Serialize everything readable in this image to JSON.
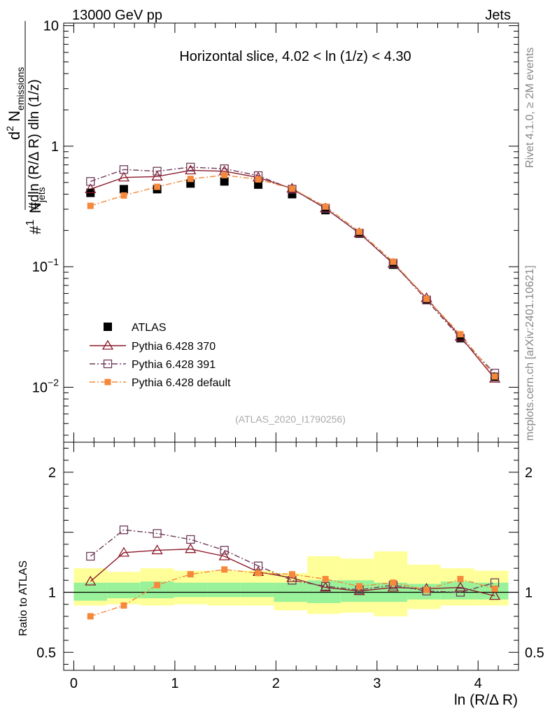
{
  "header": {
    "left": "13000 GeV pp",
    "right": "Jets",
    "rivet": "Rivet 4.1.0, ≥ 2M events",
    "mcplots": "mcplots.cern.ch [arXiv:2401.10621]",
    "analysis": "(ATLAS_2020_I1790256)"
  },
  "chart_data": [
    {
      "type": "line",
      "title": "Horizontal slice, 4.02 < ln (1/z) < 4.30",
      "xlabel": "ln (R/Δ R)",
      "ylabel": "1/N_jets dN_emissions/dln(R/ΔR) dln(1/z)",
      "ylabel_parts": {
        "frac": "1",
        "njets": "N",
        "njets_sub": "jets",
        "hash": "#",
        "d2": "d",
        "d2sup": "2",
        "nem": "N",
        "nem_sub": "emissions",
        "denom": "dln (R/Δ R) dln (1/z)"
      },
      "yscale": "log",
      "xlim": [
        -0.1,
        4.4
      ],
      "ylim": [
        0.0035,
        10.5
      ],
      "xticks": [
        0,
        1,
        2,
        3,
        4
      ],
      "ytick_labels": [
        {
          "value": 10,
          "label": "10"
        },
        {
          "value": 1,
          "label": "1"
        },
        {
          "value": 0.1,
          "base": "10",
          "exp": "−1"
        },
        {
          "value": 0.01,
          "base": "10",
          "exp": "−2"
        }
      ],
      "x": [
        0.165,
        0.495,
        0.825,
        1.155,
        1.49,
        1.825,
        2.16,
        2.49,
        2.825,
        3.16,
        3.49,
        3.825,
        4.165
      ],
      "legend_position": "bottom-left",
      "series": [
        {
          "name": "ATLAS",
          "color": "#000000",
          "marker": "filled-square",
          "line": "none",
          "values": [
            0.41,
            0.44,
            0.44,
            0.49,
            0.51,
            0.48,
            0.4,
            0.295,
            0.188,
            0.104,
            0.053,
            0.0255,
            0.0122
          ]
        },
        {
          "name": "Pythia 6.428 370",
          "color": "#8b1a2b",
          "marker": "open-triangle",
          "line": "solid",
          "values": [
            0.44,
            0.55,
            0.56,
            0.63,
            0.62,
            0.55,
            0.445,
            0.305,
            0.19,
            0.106,
            0.055,
            0.0263,
            0.0118
          ]
        },
        {
          "name": "Pythia 6.428 391",
          "color": "#6e3b58",
          "marker": "open-square",
          "line": "dashdot",
          "values": [
            0.51,
            0.64,
            0.62,
            0.67,
            0.65,
            0.57,
            0.44,
            0.305,
            0.19,
            0.107,
            0.053,
            0.0255,
            0.0131
          ]
        },
        {
          "name": "Pythia 6.428 default",
          "color": "#f5883a",
          "marker": "filled-square-small",
          "line": "dashdot",
          "values": [
            0.32,
            0.39,
            0.46,
            0.535,
            0.575,
            0.53,
            0.445,
            0.315,
            0.195,
            0.11,
            0.054,
            0.0275,
            0.0123
          ]
        }
      ]
    },
    {
      "type": "line",
      "ylabel": "Ratio to ATLAS",
      "xlabel": "ln (R/Δ R)",
      "ylim": [
        0.35,
        2.25
      ],
      "yticks": [
        0.5,
        1,
        2
      ],
      "ytick_labels": [
        "0.5",
        "1",
        "2"
      ],
      "reference_line": 1,
      "bands": {
        "edges": [
          0,
          0.33,
          0.66,
          0.99,
          1.32,
          1.65,
          1.98,
          2.31,
          2.64,
          2.97,
          3.3,
          3.63,
          3.96,
          4.3
        ],
        "green_lo": [
          0.93,
          0.95,
          0.95,
          0.96,
          0.96,
          0.96,
          0.92,
          0.91,
          0.92,
          0.92,
          0.94,
          0.94,
          0.94
        ],
        "green_hi": [
          1.08,
          1.08,
          1.09,
          1.08,
          1.08,
          1.08,
          1.08,
          1.1,
          1.1,
          1.08,
          1.07,
          1.09,
          1.08
        ],
        "yellow_lo": [
          0.89,
          0.9,
          0.89,
          0.9,
          0.89,
          0.89,
          0.85,
          0.82,
          0.83,
          0.8,
          0.86,
          0.89,
          0.89
        ],
        "yellow_hi": [
          1.2,
          1.17,
          1.2,
          1.18,
          1.18,
          1.18,
          1.16,
          1.3,
          1.28,
          1.34,
          1.23,
          1.2,
          1.18
        ]
      },
      "series": [
        {
          "name": "Pythia 6.428 370",
          "color": "#8b1a2b",
          "values": [
            1.09,
            1.33,
            1.35,
            1.36,
            1.3,
            1.17,
            1.12,
            1.04,
            1.01,
            1.04,
            1.03,
            1.04,
            0.97
          ]
        },
        {
          "name": "Pythia 6.428 391",
          "color": "#6e3b58",
          "values": [
            1.3,
            1.52,
            1.49,
            1.44,
            1.35,
            1.22,
            1.1,
            1.05,
            1.02,
            1.06,
            1.01,
            1.0,
            1.08
          ]
        },
        {
          "name": "Pythia 6.428 default",
          "color": "#f5883a",
          "values": [
            0.8,
            0.89,
            1.06,
            1.15,
            1.19,
            1.16,
            1.15,
            1.11,
            1.05,
            1.08,
            1.02,
            1.11,
            1.03
          ]
        }
      ]
    }
  ]
}
